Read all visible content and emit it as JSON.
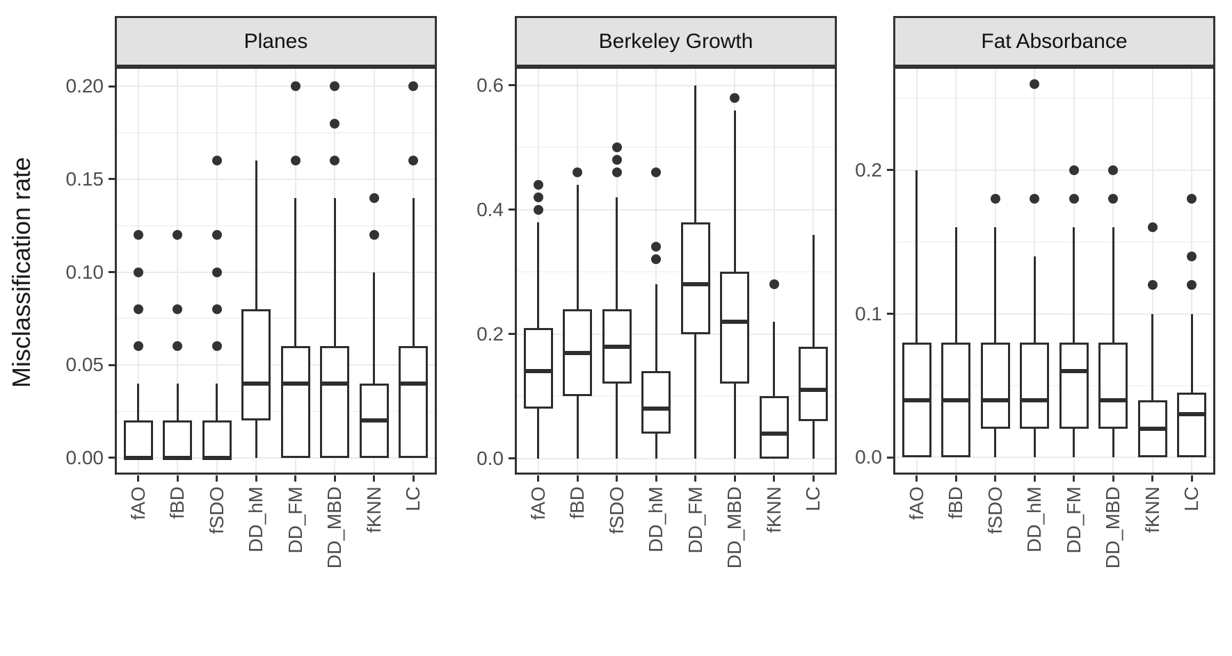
{
  "chart_data": {
    "type": "boxplot",
    "title": "",
    "xlabel": "",
    "ylabel": "Misclassification rate",
    "grid": true,
    "legend": false,
    "categories": [
      "fAO",
      "fBD",
      "fSDO",
      "DD_hM",
      "DD_FM",
      "DD_MBD",
      "fKNN",
      "LC"
    ],
    "facets": [
      {
        "title": "Planes",
        "ylim": [
          -0.009,
          0.2105
        ],
        "yticks": [
          0.0,
          0.05,
          0.1,
          0.15,
          0.2
        ],
        "ytick_labels": [
          "0.00",
          "0.05",
          "0.10",
          "0.15",
          "0.20"
        ],
        "yminor": [
          0.025,
          0.075,
          0.125,
          0.175
        ],
        "boxes": [
          {
            "category": "fAO",
            "whislo": 0.0,
            "q1": 0.0,
            "med": 0.0,
            "q3": 0.02,
            "whishi": 0.04,
            "outliers": [
              0.06,
              0.08,
              0.1,
              0.12
            ]
          },
          {
            "category": "fBD",
            "whislo": 0.0,
            "q1": 0.0,
            "med": 0.0,
            "q3": 0.02,
            "whishi": 0.04,
            "outliers": [
              0.06,
              0.08,
              0.12
            ]
          },
          {
            "category": "fSDO",
            "whislo": 0.0,
            "q1": 0.0,
            "med": 0.0,
            "q3": 0.02,
            "whishi": 0.04,
            "outliers": [
              0.06,
              0.08,
              0.1,
              0.12,
              0.16
            ]
          },
          {
            "category": "DD_hM",
            "whislo": 0.0,
            "q1": 0.02,
            "med": 0.04,
            "q3": 0.08,
            "whishi": 0.16,
            "outliers": []
          },
          {
            "category": "DD_FM",
            "whislo": 0.0,
            "q1": 0.0,
            "med": 0.04,
            "q3": 0.06,
            "whishi": 0.14,
            "outliers": [
              0.16,
              0.2
            ]
          },
          {
            "category": "DD_MBD",
            "whislo": 0.0,
            "q1": 0.0,
            "med": 0.04,
            "q3": 0.06,
            "whishi": 0.14,
            "outliers": [
              0.16,
              0.18,
              0.2
            ]
          },
          {
            "category": "fKNN",
            "whislo": 0.0,
            "q1": 0.0,
            "med": 0.02,
            "q3": 0.04,
            "whishi": 0.1,
            "outliers": [
              0.12,
              0.14
            ]
          },
          {
            "category": "LC",
            "whislo": 0.0,
            "q1": 0.0,
            "med": 0.04,
            "q3": 0.06,
            "whishi": 0.14,
            "outliers": [
              0.16,
              0.2
            ]
          }
        ]
      },
      {
        "title": "Berkeley Growth",
        "ylim": [
          -0.026,
          0.63
        ],
        "yticks": [
          0.0,
          0.2,
          0.4,
          0.6
        ],
        "ytick_labels": [
          "0.0",
          "0.2",
          "0.4",
          "0.6"
        ],
        "yminor": [
          0.1,
          0.3,
          0.5
        ],
        "boxes": [
          {
            "category": "fAO",
            "whislo": 0.0,
            "q1": 0.08,
            "med": 0.14,
            "q3": 0.21,
            "whishi": 0.38,
            "outliers": [
              0.4,
              0.42,
              0.44
            ]
          },
          {
            "category": "fBD",
            "whislo": 0.0,
            "q1": 0.1,
            "med": 0.17,
            "q3": 0.24,
            "whishi": 0.44,
            "outliers": [
              0.46
            ]
          },
          {
            "category": "fSDO",
            "whislo": 0.0,
            "q1": 0.12,
            "med": 0.18,
            "q3": 0.24,
            "whishi": 0.42,
            "outliers": [
              0.46,
              0.48,
              0.5
            ]
          },
          {
            "category": "DD_hM",
            "whislo": 0.0,
            "q1": 0.04,
            "med": 0.08,
            "q3": 0.14,
            "whishi": 0.28,
            "outliers": [
              0.32,
              0.34,
              0.46
            ]
          },
          {
            "category": "DD_FM",
            "whislo": 0.0,
            "q1": 0.2,
            "med": 0.28,
            "q3": 0.38,
            "whishi": 0.6,
            "outliers": []
          },
          {
            "category": "DD_MBD",
            "whislo": 0.0,
            "q1": 0.12,
            "med": 0.22,
            "q3": 0.3,
            "whishi": 0.56,
            "outliers": [
              0.58
            ]
          },
          {
            "category": "fKNN",
            "whislo": 0.0,
            "q1": 0.0,
            "med": 0.04,
            "q3": 0.1,
            "whishi": 0.22,
            "outliers": [
              0.28
            ]
          },
          {
            "category": "LC",
            "whislo": 0.0,
            "q1": 0.06,
            "med": 0.11,
            "q3": 0.18,
            "whishi": 0.36,
            "outliers": []
          }
        ]
      },
      {
        "title": "Fat Absorbance",
        "ylim": [
          -0.012,
          0.272
        ],
        "yticks": [
          0.0,
          0.1,
          0.2
        ],
        "ytick_labels": [
          "0.0",
          "0.1",
          "0.2"
        ],
        "yminor": [
          0.05,
          0.15,
          0.25
        ],
        "boxes": [
          {
            "category": "fAO",
            "whislo": 0.0,
            "q1": 0.0,
            "med": 0.04,
            "q3": 0.08,
            "whishi": 0.2,
            "outliers": []
          },
          {
            "category": "fBD",
            "whislo": 0.0,
            "q1": 0.0,
            "med": 0.04,
            "q3": 0.08,
            "whishi": 0.16,
            "outliers": []
          },
          {
            "category": "fSDO",
            "whislo": 0.0,
            "q1": 0.02,
            "med": 0.04,
            "q3": 0.08,
            "whishi": 0.16,
            "outliers": [
              0.18
            ]
          },
          {
            "category": "DD_hM",
            "whislo": 0.0,
            "q1": 0.02,
            "med": 0.04,
            "q3": 0.08,
            "whishi": 0.14,
            "outliers": [
              0.18,
              0.26
            ]
          },
          {
            "category": "DD_FM",
            "whislo": 0.0,
            "q1": 0.02,
            "med": 0.06,
            "q3": 0.08,
            "whishi": 0.16,
            "outliers": [
              0.18,
              0.2
            ]
          },
          {
            "category": "DD_MBD",
            "whislo": 0.0,
            "q1": 0.02,
            "med": 0.04,
            "q3": 0.08,
            "whishi": 0.16,
            "outliers": [
              0.18,
              0.2
            ]
          },
          {
            "category": "fKNN",
            "whislo": 0.0,
            "q1": 0.0,
            "med": 0.02,
            "q3": 0.04,
            "whishi": 0.1,
            "outliers": [
              0.12,
              0.16
            ]
          },
          {
            "category": "LC",
            "whislo": 0.0,
            "q1": 0.0,
            "med": 0.03,
            "q3": 0.045,
            "whishi": 0.1,
            "outliers": [
              0.12,
              0.14,
              0.18
            ]
          }
        ]
      }
    ],
    "colors": {
      "box_line": "#2e2e2e",
      "outlier_point": "#333333",
      "strip_background": "#e2e2e2",
      "panel_border": "#333333",
      "grid_major": "#ebebeb",
      "grid_minor": "#f4f4f4",
      "axis_text": "#4d4d4d"
    }
  }
}
